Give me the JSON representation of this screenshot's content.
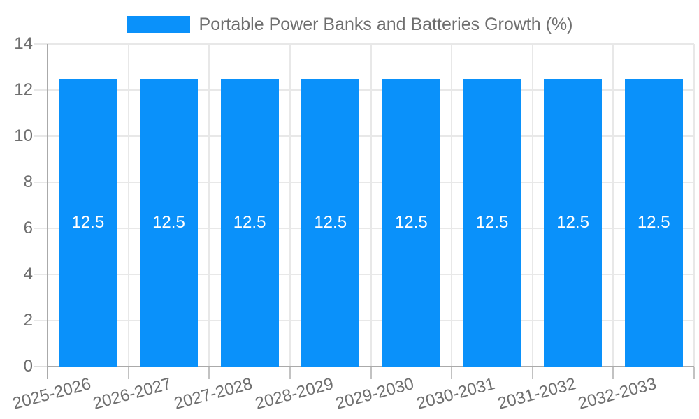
{
  "chart_data": {
    "type": "bar",
    "title": "Portable Power Banks and Batteries Growth (%)",
    "categories": [
      "2025-2026",
      "2026-2027",
      "2027-2028",
      "2028-2029",
      "2029-2030",
      "2030-2031",
      "2031-2032",
      "2032-2033"
    ],
    "series": [
      {
        "name": "Portable Power Banks and Batteries Growth (%)",
        "values": [
          12.5,
          12.5,
          12.5,
          12.5,
          12.5,
          12.5,
          12.5,
          12.5
        ]
      }
    ],
    "xlabel": "",
    "ylabel": "",
    "ylim": [
      0,
      14
    ],
    "yticks": [
      0,
      2,
      4,
      6,
      8,
      10,
      12,
      14
    ],
    "grid": "on",
    "legend_position": "top",
    "x_label_rotation_deg": -15,
    "value_labels_inside_bars": true
  },
  "colors": {
    "bar": "#0a91fa",
    "bar_value_label": "#ffffff",
    "grid_line": "#e8e8e8",
    "axis_line": "#aaaaaa",
    "tick_below_axis": "#c2c2c2",
    "tick_left_of_axis": "#dedede",
    "tick_label_text": "#6f6f6f",
    "legend_text": "#6f6f6f",
    "background": "#ffffff"
  }
}
